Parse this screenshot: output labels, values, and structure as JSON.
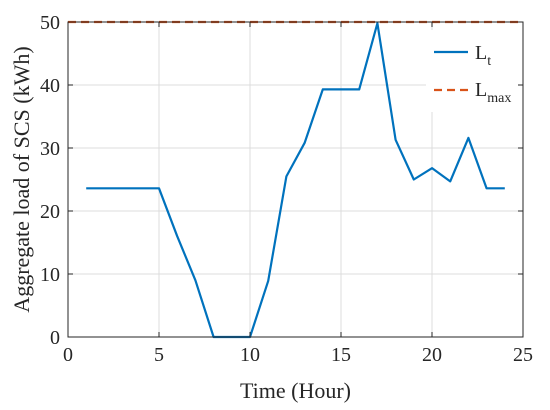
{
  "chart_data": {
    "type": "line",
    "xlabel": "Time (Hour)",
    "ylabel": "Aggregate load of SCS (kWh)",
    "xlim": [
      0,
      25
    ],
    "ylim": [
      0,
      50
    ],
    "xticks": [
      0,
      5,
      10,
      15,
      20,
      25
    ],
    "yticks": [
      0,
      10,
      20,
      30,
      40,
      50
    ],
    "grid": true,
    "legend_position": "top-right",
    "series": [
      {
        "name_main": "L",
        "name_sub": "t",
        "color": "#0072BD",
        "style": "solid",
        "x": [
          1,
          2,
          3,
          4,
          5,
          6,
          7,
          8,
          9,
          10,
          11,
          12,
          13,
          14,
          15,
          16,
          17,
          18,
          19,
          20,
          21,
          22,
          23,
          24
        ],
        "y": [
          23.6,
          23.6,
          23.6,
          23.6,
          23.6,
          16.0,
          9.0,
          0,
          0,
          0,
          8.9,
          25.5,
          30.8,
          39.3,
          39.3,
          39.3,
          49.8,
          31.3,
          25.0,
          26.8,
          24.7,
          31.6,
          23.6,
          23.6
        ]
      },
      {
        "name_main": "L",
        "name_sub": "max",
        "color": "#D95319",
        "style": "dashed",
        "x": [
          0,
          25
        ],
        "y": [
          50,
          50
        ]
      }
    ]
  }
}
